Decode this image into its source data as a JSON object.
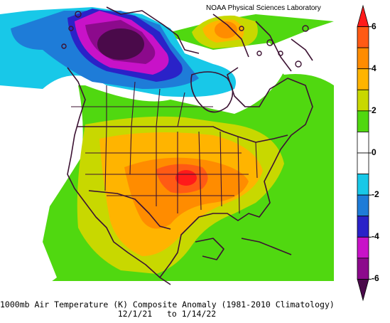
{
  "credit": "NOAA Physical Sciences Laboratory",
  "caption": {
    "line1": "1000mb Air Temperature (K) Composite Anomaly (1981-2010 Climatology)",
    "line2": "12/1/21   to 1/14/22"
  },
  "colorbar": {
    "ticks": [
      "6",
      "4",
      "2",
      "0",
      "-2",
      "-4",
      "-6"
    ],
    "levels": [
      {
        "range": "6+",
        "color": "#ff1a1a"
      },
      {
        "range": "5-6",
        "color": "#ff5a14"
      },
      {
        "range": "4-5",
        "color": "#ff8c00"
      },
      {
        "range": "3-4",
        "color": "#ffb400"
      },
      {
        "range": "2-3",
        "color": "#c8d800"
      },
      {
        "range": "1-2",
        "color": "#50d810"
      },
      {
        "range": "0-1",
        "color": "#ffffff"
      },
      {
        "range": "-1-0",
        "color": "#ffffff"
      },
      {
        "range": "-2--1",
        "color": "#18c8e8"
      },
      {
        "range": "-3--2",
        "color": "#1e7cd8"
      },
      {
        "range": "-4--3",
        "color": "#2a22c8"
      },
      {
        "range": "-5--4",
        "color": "#c812c8"
      },
      {
        "range": "-6--5",
        "color": "#8c0a8c"
      },
      {
        "range": "-6-",
        "color": "#4a0a4a"
      }
    ]
  },
  "map": {
    "land_outline_color": "#3c1232",
    "regions": [
      "north-pacific",
      "canada",
      "united-states",
      "mexico",
      "atlantic"
    ]
  }
}
